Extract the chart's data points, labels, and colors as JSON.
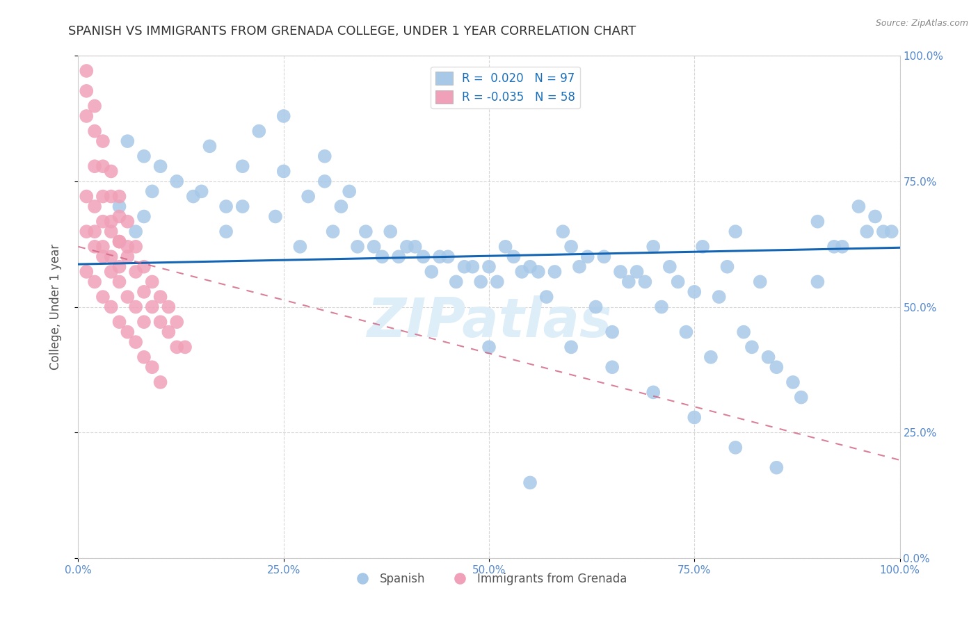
{
  "title": "SPANISH VS IMMIGRANTS FROM GRENADA COLLEGE, UNDER 1 YEAR CORRELATION CHART",
  "source_text": "Source: ZipAtlas.com",
  "ylabel": "College, Under 1 year",
  "xlabel": "",
  "xlim": [
    0.0,
    1.0
  ],
  "ylim": [
    0.0,
    1.0
  ],
  "xtick_labels": [
    "0.0%",
    "25.0%",
    "50.0%",
    "75.0%",
    "100.0%"
  ],
  "ytick_labels_left": [
    "",
    "",
    "",
    "",
    ""
  ],
  "ytick_labels_right": [
    "0.0%",
    "25.0%",
    "50.0%",
    "75.0%",
    "100.0%"
  ],
  "legend_labels": [
    "Spanish",
    "Immigrants from Grenada"
  ],
  "blue_color": "#a8c8e8",
  "pink_color": "#f0a0b8",
  "blue_line_color": "#1464b4",
  "pink_line_color": "#d06080",
  "r_blue": 0.02,
  "n_blue": 97,
  "r_pink": -0.035,
  "n_pink": 58,
  "blue_scatter_x": [
    0.25,
    0.06,
    0.08,
    0.1,
    0.12,
    0.09,
    0.14,
    0.05,
    0.08,
    0.07,
    0.16,
    0.2,
    0.15,
    0.18,
    0.25,
    0.3,
    0.28,
    0.32,
    0.22,
    0.18,
    0.35,
    0.2,
    0.24,
    0.27,
    0.31,
    0.34,
    0.37,
    0.41,
    0.44,
    0.47,
    0.3,
    0.33,
    0.36,
    0.38,
    0.4,
    0.42,
    0.45,
    0.48,
    0.5,
    0.52,
    0.39,
    0.43,
    0.46,
    0.49,
    0.53,
    0.56,
    0.59,
    0.55,
    0.58,
    0.6,
    0.63,
    0.66,
    0.51,
    0.54,
    0.57,
    0.61,
    0.64,
    0.67,
    0.62,
    0.65,
    0.68,
    0.7,
    0.72,
    0.75,
    0.78,
    0.69,
    0.73,
    0.76,
    0.79,
    0.8,
    0.83,
    0.81,
    0.84,
    0.87,
    0.71,
    0.74,
    0.77,
    0.82,
    0.85,
    0.88,
    0.9,
    0.92,
    0.95,
    0.5,
    0.55,
    0.6,
    0.65,
    0.7,
    0.75,
    0.8,
    0.85,
    0.9,
    0.93,
    0.96,
    0.97,
    0.98,
    0.99
  ],
  "blue_scatter_y": [
    0.88,
    0.83,
    0.8,
    0.78,
    0.75,
    0.73,
    0.72,
    0.7,
    0.68,
    0.65,
    0.82,
    0.78,
    0.73,
    0.7,
    0.77,
    0.8,
    0.72,
    0.7,
    0.85,
    0.65,
    0.65,
    0.7,
    0.68,
    0.62,
    0.65,
    0.62,
    0.6,
    0.62,
    0.6,
    0.58,
    0.75,
    0.73,
    0.62,
    0.65,
    0.62,
    0.6,
    0.6,
    0.58,
    0.58,
    0.62,
    0.6,
    0.57,
    0.55,
    0.55,
    0.6,
    0.57,
    0.65,
    0.58,
    0.57,
    0.62,
    0.5,
    0.57,
    0.55,
    0.57,
    0.52,
    0.58,
    0.6,
    0.55,
    0.6,
    0.45,
    0.57,
    0.62,
    0.58,
    0.53,
    0.52,
    0.55,
    0.55,
    0.62,
    0.58,
    0.65,
    0.55,
    0.45,
    0.4,
    0.35,
    0.5,
    0.45,
    0.4,
    0.42,
    0.38,
    0.32,
    0.55,
    0.62,
    0.7,
    0.42,
    0.15,
    0.42,
    0.38,
    0.33,
    0.28,
    0.22,
    0.18,
    0.67,
    0.62,
    0.65,
    0.68,
    0.65,
    0.65
  ],
  "pink_scatter_x": [
    0.01,
    0.01,
    0.01,
    0.02,
    0.02,
    0.02,
    0.03,
    0.03,
    0.03,
    0.04,
    0.04,
    0.04,
    0.05,
    0.05,
    0.05,
    0.06,
    0.06,
    0.07,
    0.07,
    0.08,
    0.08,
    0.09,
    0.09,
    0.1,
    0.1,
    0.11,
    0.11,
    0.12,
    0.12,
    0.13,
    0.01,
    0.02,
    0.03,
    0.04,
    0.05,
    0.06,
    0.02,
    0.03,
    0.04,
    0.05,
    0.01,
    0.02,
    0.03,
    0.04,
    0.05,
    0.06,
    0.07,
    0.08,
    0.01,
    0.02,
    0.03,
    0.04,
    0.05,
    0.06,
    0.07,
    0.08,
    0.09,
    0.1
  ],
  "pink_scatter_y": [
    0.97,
    0.93,
    0.88,
    0.9,
    0.85,
    0.78,
    0.83,
    0.78,
    0.72,
    0.77,
    0.72,
    0.67,
    0.72,
    0.68,
    0.63,
    0.67,
    0.62,
    0.62,
    0.57,
    0.58,
    0.53,
    0.55,
    0.5,
    0.52,
    0.47,
    0.5,
    0.45,
    0.47,
    0.42,
    0.42,
    0.72,
    0.7,
    0.67,
    0.65,
    0.63,
    0.6,
    0.65,
    0.62,
    0.6,
    0.58,
    0.65,
    0.62,
    0.6,
    0.57,
    0.55,
    0.52,
    0.5,
    0.47,
    0.57,
    0.55,
    0.52,
    0.5,
    0.47,
    0.45,
    0.43,
    0.4,
    0.38,
    0.35
  ],
  "background_color": "#ffffff",
  "grid_color": "#cccccc",
  "title_color": "#333333",
  "axis_color": "#5588cc",
  "watermark_color": "#ddeef8",
  "legend_box_color": "#ffffff",
  "r_label_color": "#1a6fba",
  "blue_line_y0": 0.585,
  "blue_line_y1": 0.618,
  "pink_line_y0": 0.62,
  "pink_line_y1": 0.195
}
